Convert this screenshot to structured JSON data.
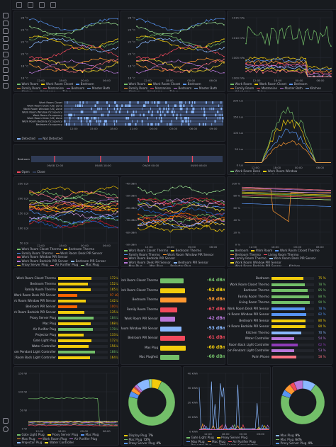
{
  "nav": {
    "icons": [
      "apps-icon",
      "search-icon",
      "star-icon",
      "dashboards-icon",
      "explore-icon",
      "alerting-icon",
      "connections-icon",
      "admin-icon",
      "plugins-icon",
      "settings-icon"
    ],
    "bottom_icons": [
      "help-icon",
      "user-avatar"
    ]
  },
  "toolbar": {
    "icons": [
      "home-icon",
      "sitemap-icon",
      "flow-icon",
      "shield-icon"
    ]
  },
  "panels": {
    "temp1": {
      "title": "Temperature",
      "yticks": [
        "26 °C",
        "24 °C",
        "22 °C",
        "20 °C",
        "18 °C",
        "16 °C"
      ],
      "xticks": [
        "12:00",
        "18:00",
        "00:00",
        "06:00"
      ],
      "legend": [
        "Work Room",
        "Work Room Closet",
        "Bedroom",
        "Family Room",
        "Mezzanine",
        "Bedroom",
        "Master Bath",
        "Kitchen",
        "Yokohama",
        "Tokyo"
      ]
    },
    "temp2": {
      "title": "Temperature",
      "yticks": [
        "26 °C",
        "24 °C",
        "22 °C",
        "20 °C",
        "18 °C",
        "16 °C"
      ],
      "xticks": [
        "12:00",
        "18:00",
        "00:00",
        "06:00"
      ],
      "legend": [
        "Work Room",
        "Work Room Closet",
        "Bedroom",
        "Family Room",
        "Mezzanine",
        "Bedroom",
        "Master Bath",
        "Kitchen",
        "Yokohama",
        "Tokyo"
      ]
    },
    "pressure": {
      "title": "Atmosphere Pressure",
      "yticks": [
        "1015 hPa",
        "1010 hPa",
        "1005 hPa",
        "1000 hPa"
      ],
      "xticks": [
        "12:00",
        "18:00",
        "00:00",
        "06:00"
      ],
      "legend": [
        "Work Room",
        "Work Room Closet",
        "Bedroom",
        "Family Room",
        "Mezzanine",
        "Master Bath",
        "Kitchen",
        "Yokohama",
        "Tokyo"
      ]
    },
    "motion": {
      "title": "Motion Detection",
      "rows": [
        "Work Room Closet",
        "Work Room Desk (US) Zone",
        "Work Room Window (US) Zone",
        "Work Room Window Occupancy",
        "Work Room Occupancy",
        "Work Room Desk (US) Zone",
        "Work Room Bedside Occupancy",
        "Bedroom Occupancy"
      ],
      "xticks": [
        "12:00",
        "15:00",
        "18:00",
        "21:00",
        "00:00",
        "03:00",
        "06:00",
        "09:00"
      ],
      "legend": [
        "Detected",
        "Not Detected"
      ]
    },
    "door": {
      "title": "Door Sensor",
      "rows": [
        "Bedroom"
      ],
      "xticks": [
        "09/08 12:00",
        "09/08 18:00",
        "09/09 00:00",
        "09/09 06:00"
      ],
      "legend": [
        "Open",
        "Close"
      ]
    },
    "illum": {
      "title": "Illuminance",
      "yticks": [
        "200 lux",
        "150 lux",
        "100 lux",
        "50 lux",
        "0 lux"
      ],
      "xticks": [
        "12:00",
        "18:00",
        "00:00",
        "06:00"
      ],
      "legend": [
        "Work Room Desk",
        "Work Room Window",
        "Work Room Bedside",
        "Bedroom"
      ]
    },
    "lqi_ts": {
      "title": "Link Quality Indicator",
      "yticks": [
        "250 LQI",
        "200 LQI",
        "150 LQI",
        "100 LQI",
        "50 LQI"
      ],
      "xticks": [
        "12:00",
        "18:00",
        "00:00",
        "06:00"
      ],
      "legend": [
        "Work Room Closet Thermo",
        "Bedroom Thermo",
        "Family Room Thermo",
        "Work Room Desk PIR Sensor",
        "Work Room Window PIR Sensor",
        "Work Room Bedside PIR Sensor",
        "Bedroom PIR Sensor",
        "Proxy Server Plug",
        "Air Purifier Plug",
        "Mac Plug",
        "Water Controller",
        "Work Room Back Light Controller",
        "Work Room Pendant Light",
        "Projector Plug",
        "Gate Light Plug",
        "Work Room Back Light Controller"
      ]
    },
    "rssi_ts": {
      "title": "Receive Signal Strength Indicator",
      "yticks": [
        "-40 dBm",
        "-50 dBm",
        "-60 dBm",
        "-70 dBm",
        "-80 dBm",
        "-90 dBm"
      ],
      "xticks": [
        "12:00",
        "18:00",
        "00:00",
        "06:00"
      ],
      "legend": [
        "Work Room Closet Thermo",
        "Bedroom Thermo",
        "Family Room Thermo",
        "Work Room Window PIR Sensor",
        "Work Room Bedside PIR Sensor",
        "Work Room Desk PIR Sensor",
        "Bedroom PIR Sensor",
        "Max Plug",
        "Mac Plug",
        "Projector Plug",
        "Proxy Server Plug",
        "Water Controller",
        "Work Room Back Light Controller",
        "Work Room Pendant Light Controller",
        "Bedroom PIR Sensor",
        "Mac Plugfest"
      ]
    },
    "battery_ts": {
      "title": "Battery",
      "yticks": [
        "100 %",
        "80 %",
        "60 %",
        "40 %",
        "20 %",
        "0 %"
      ],
      "xticks": [
        "12:00",
        "18:00",
        "00:00",
        "06:00"
      ],
      "legend": [
        "Bedroom",
        "Palm Room",
        "Work Room Closet Thermo",
        "Bedroom Thermo",
        "Living Room Thermo",
        "Family Room Thermo",
        "Work Room Desk PIR Sensor",
        "Work Room Window PIR Sensor",
        "Work Room Bedside PIR Sensor",
        "Kitchen",
        "Bedroom PIR Sensor",
        "Water Controller",
        "Work Room Back Light Controller"
      ]
    },
    "lqi_bar": {
      "title": "Link Quality Indicator",
      "rows": [
        {
          "label": "Work Room Closet Thermo",
          "value": "172 LQI",
          "pct": 0.67,
          "color": "#f2cc0c"
        },
        {
          "label": "Bedroom Thermo",
          "value": "152 LQI",
          "pct": 0.6,
          "color": "#f2cc0c"
        },
        {
          "label": "Family Room Thermo",
          "value": "165 LQI",
          "pct": 0.65,
          "color": "#f2cc0c"
        },
        {
          "label": "Work Room Desk PIR Sensor",
          "value": "97 LQI",
          "pct": 0.38,
          "color": "#fa6400"
        },
        {
          "label": "Work Room Window PIR Sensor",
          "value": "142 LQI",
          "pct": 0.56,
          "color": "#f2cc0c"
        },
        {
          "label": "Bedroom PIR Sensor",
          "value": "100 LQI",
          "pct": 0.39,
          "color": "#fa6400"
        },
        {
          "label": "Work Room Bedside PIR Sensor",
          "value": "135 LQI",
          "pct": 0.53,
          "color": "#f2cc0c"
        },
        {
          "label": "Proxy Server Plug",
          "value": "184 LQI",
          "pct": 0.72,
          "color": "#73bf69"
        },
        {
          "label": "Mac Plug",
          "value": "168 LQI",
          "pct": 0.66,
          "color": "#f2cc0c"
        },
        {
          "label": "Air Purifier Plug",
          "value": "178 LQI",
          "pct": 0.7,
          "color": "#73bf69"
        },
        {
          "label": "Projector Plug",
          "value": "133 LQI",
          "pct": 0.52,
          "color": "#f2cc0c"
        },
        {
          "label": "Gate Light Plug",
          "value": "172 LQI",
          "pct": 0.67,
          "color": "#f2cc0c"
        },
        {
          "label": "Water Controller",
          "value": "156 LQI",
          "pct": 0.61,
          "color": "#f2cc0c"
        },
        {
          "label": "Work Room Pendant Light Controller",
          "value": "188 LQI",
          "pct": 0.74,
          "color": "#73bf69"
        },
        {
          "label": "Work Room Back Light Controller",
          "value": "164 LQI",
          "pct": 0.64,
          "color": "#f2cc0c"
        }
      ]
    },
    "rssi_bar": {
      "title": "Receive Signal Strength Indicator",
      "rows": [
        {
          "label": "Work Room Closet Thermo",
          "value": "-64 dBm",
          "pct": 0.55,
          "color": "#73bf69"
        },
        {
          "label": "Work Room Closet Thermo",
          "value": "-62 dBm",
          "pct": 0.58,
          "color": "#f2cc0c"
        },
        {
          "label": "Bedroom Thermo",
          "value": "-58 dBm",
          "pct": 0.62,
          "color": "#ff9830"
        },
        {
          "label": "Family Room Thermo",
          "value": "-67 dBm",
          "pct": 0.4,
          "color": "#f2495c"
        },
        {
          "label": "Work Room PIR Sensor",
          "value": "-42 dBm",
          "pct": 0.35,
          "color": "#b877d9"
        },
        {
          "label": "Work Room Window PIR Sensor",
          "value": "-53 dBm",
          "pct": 0.5,
          "color": "#8ab8ff"
        },
        {
          "label": "Bedroom PIR Sensor",
          "value": "-61 dBm",
          "pct": 0.58,
          "color": "#f2495c"
        },
        {
          "label": "Max Plug",
          "value": "-60 dBm",
          "pct": 0.6,
          "color": "#f2cc0c"
        },
        {
          "label": "Mac Plugfest",
          "value": "-60 dBm",
          "pct": 0.45,
          "color": "#73bf69"
        }
      ]
    },
    "battery_bar": {
      "title": "Battery",
      "rows": [
        {
          "label": "Bedroom",
          "value": "75 %",
          "pct": 0.75,
          "color": "#f2cc0c"
        },
        {
          "label": "Work Room Closet Thermo",
          "value": "78 %",
          "pct": 0.78,
          "color": "#73bf69"
        },
        {
          "label": "Bedroom Thermo",
          "value": "85 %",
          "pct": 0.85,
          "color": "#73bf69"
        },
        {
          "label": "Family Room Thermo",
          "value": "88 %",
          "pct": 0.88,
          "color": "#73bf69"
        },
        {
          "label": "Living Room Thermo",
          "value": "90 %",
          "pct": 0.9,
          "color": "#73bf69"
        },
        {
          "label": "Work Room Desk PIR Sensor",
          "value": "78 %",
          "pct": 0.78,
          "color": "#5794f2"
        },
        {
          "label": "Work Room Window PIR Sensor",
          "value": "82 %",
          "pct": 0.82,
          "color": "#5794f2"
        },
        {
          "label": "Bedroom PIR Sensor",
          "value": "80 %",
          "pct": 0.8,
          "color": "#f2cc0c"
        },
        {
          "label": "Work Room Bedside PIR Sensor",
          "value": "80 %",
          "pct": 0.8,
          "color": "#f2cc0c"
        },
        {
          "label": "Kitchen Thermo",
          "value": "70 %",
          "pct": 0.7,
          "color": "#8ab8ff"
        },
        {
          "label": "Water Controller",
          "value": "54 %",
          "pct": 0.54,
          "color": "#b877d9"
        },
        {
          "label": "Work Room Back Light Controller",
          "value": "62 %",
          "pct": 0.62,
          "color": "#8f3bb8"
        },
        {
          "label": "Work Room Pendant Light Controller",
          "value": "53 %",
          "pct": 0.53,
          "color": "#b877d9"
        },
        {
          "label": "Palm Phone",
          "value": "58 %",
          "pct": 0.58,
          "color": "#ff7383"
        }
      ]
    },
    "epower_ts": {
      "title": "Electric Power",
      "yticks": [
        "150 W",
        "100 W",
        "50 W",
        "0 W"
      ],
      "xticks": [
        "12:00",
        "18:00",
        "00:00",
        "06:00"
      ],
      "legend": [
        "Gate Light Plug",
        "Proxy Server Plug",
        "Mac Plug",
        "Max Plug",
        "Work Room Plug",
        "Air Purifier Plug",
        "Projector Plug",
        "Water Controller"
      ]
    },
    "epower_pie": {
      "title": "Electric Power",
      "legend": [
        {
          "label": "Display Plug",
          "value": "7%",
          "color": "#f2cc0c"
        },
        {
          "label": "Mac Plug",
          "value": "72%",
          "color": "#73bf69"
        },
        {
          "label": "Proxy Server Plug",
          "value": "4%",
          "color": "#5794f2"
        },
        {
          "label": "Air Purifier",
          "value": "3%",
          "color": "#ff9830"
        },
        {
          "label": "Gate Light Plug",
          "value": "1%",
          "color": "#f2495c"
        },
        {
          "label": "Projector Plug",
          "value": "2%",
          "color": "#b877d9"
        },
        {
          "label": "Max Plug",
          "value": "9%",
          "color": "#8ab8ff"
        },
        {
          "label": "Work Room",
          "value": "2%",
          "color": "#96d98d"
        }
      ]
    },
    "econs_ts": {
      "title": "Energy Consumption",
      "yticks": [
        "40 kWh",
        "30 kWh",
        "20 kWh",
        "10 kWh",
        "0 kWh"
      ],
      "xticks": [
        "12:00",
        "18:00",
        "00:00",
        "06:00"
      ],
      "legend": [
        "Gate Light Plug",
        "Proxy Server Plug",
        "Max Plug",
        "Mac Plug",
        "Air Purifier Plug",
        "Projector Plug",
        "Total Energy Consumption"
      ]
    },
    "econs_pie": {
      "title": "Energy Consumption",
      "legend": [
        {
          "label": "Max Plug",
          "value": "9%",
          "color": "#8ab8ff"
        },
        {
          "label": "Mac Plug",
          "value": "64%",
          "color": "#73bf69"
        },
        {
          "label": "Proxy Server Plug",
          "value": "4%",
          "color": "#5794f2"
        },
        {
          "label": "Air Purifier",
          "value": "5%",
          "color": "#ff9830"
        },
        {
          "label": "Gate Light Plug",
          "value": "3%",
          "color": "#f2495c"
        },
        {
          "label": "Projector Plug",
          "value": "6%",
          "color": "#b877d9"
        }
      ]
    }
  }
}
